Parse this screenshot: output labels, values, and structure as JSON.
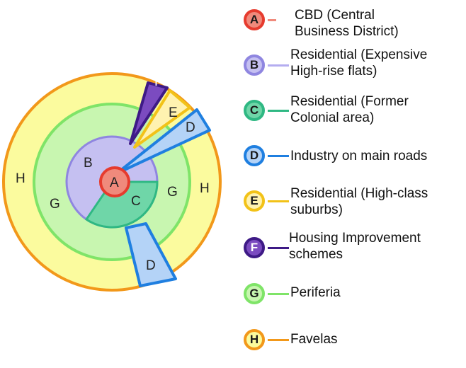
{
  "diagram": {
    "zones": {
      "A": "A",
      "B": "B",
      "C": "C",
      "D": "D",
      "E": "E",
      "F": "F",
      "G": "G",
      "H": "H"
    }
  },
  "colors": {
    "A": {
      "fill": "#f08a7c",
      "stroke": "#e63b2e"
    },
    "B": {
      "fill": "#c5c0f1",
      "stroke": "#8f86e0"
    },
    "C": {
      "fill": "#6fd6a8",
      "stroke": "#2fb883"
    },
    "D": {
      "fill": "#b4d3f7",
      "stroke": "#1f7fe0"
    },
    "E": {
      "fill": "#fff2b0",
      "stroke": "#f2c218"
    },
    "F": {
      "fill": "#7b4bc0",
      "stroke": "#3e1a86"
    },
    "G": {
      "fill": "#c8f6b0",
      "stroke": "#7fe468"
    },
    "H": {
      "fill": "#fbfb9e",
      "stroke": "#f2981a"
    }
  },
  "legend": [
    {
      "key": "A",
      "badge": "A",
      "text": "CBD (Central\nBusiness District)"
    },
    {
      "key": "B",
      "badge": "B",
      "text": "Residential (Expensive\nHigh-rise flats)"
    },
    {
      "key": "C",
      "badge": "C",
      "text": "Residential (Former\nColonial area)"
    },
    {
      "key": "D",
      "badge": "D",
      "text": "Industry on main roads"
    },
    {
      "key": "E",
      "badge": "E",
      "text": "Residential (High-class\nsuburbs)"
    },
    {
      "key": "F",
      "badge": "F",
      "text": "Housing Improvement\nschemes"
    },
    {
      "key": "G",
      "badge": "G",
      "text": "Periferia"
    },
    {
      "key": "H",
      "badge": "H",
      "text": "Favelas"
    }
  ]
}
